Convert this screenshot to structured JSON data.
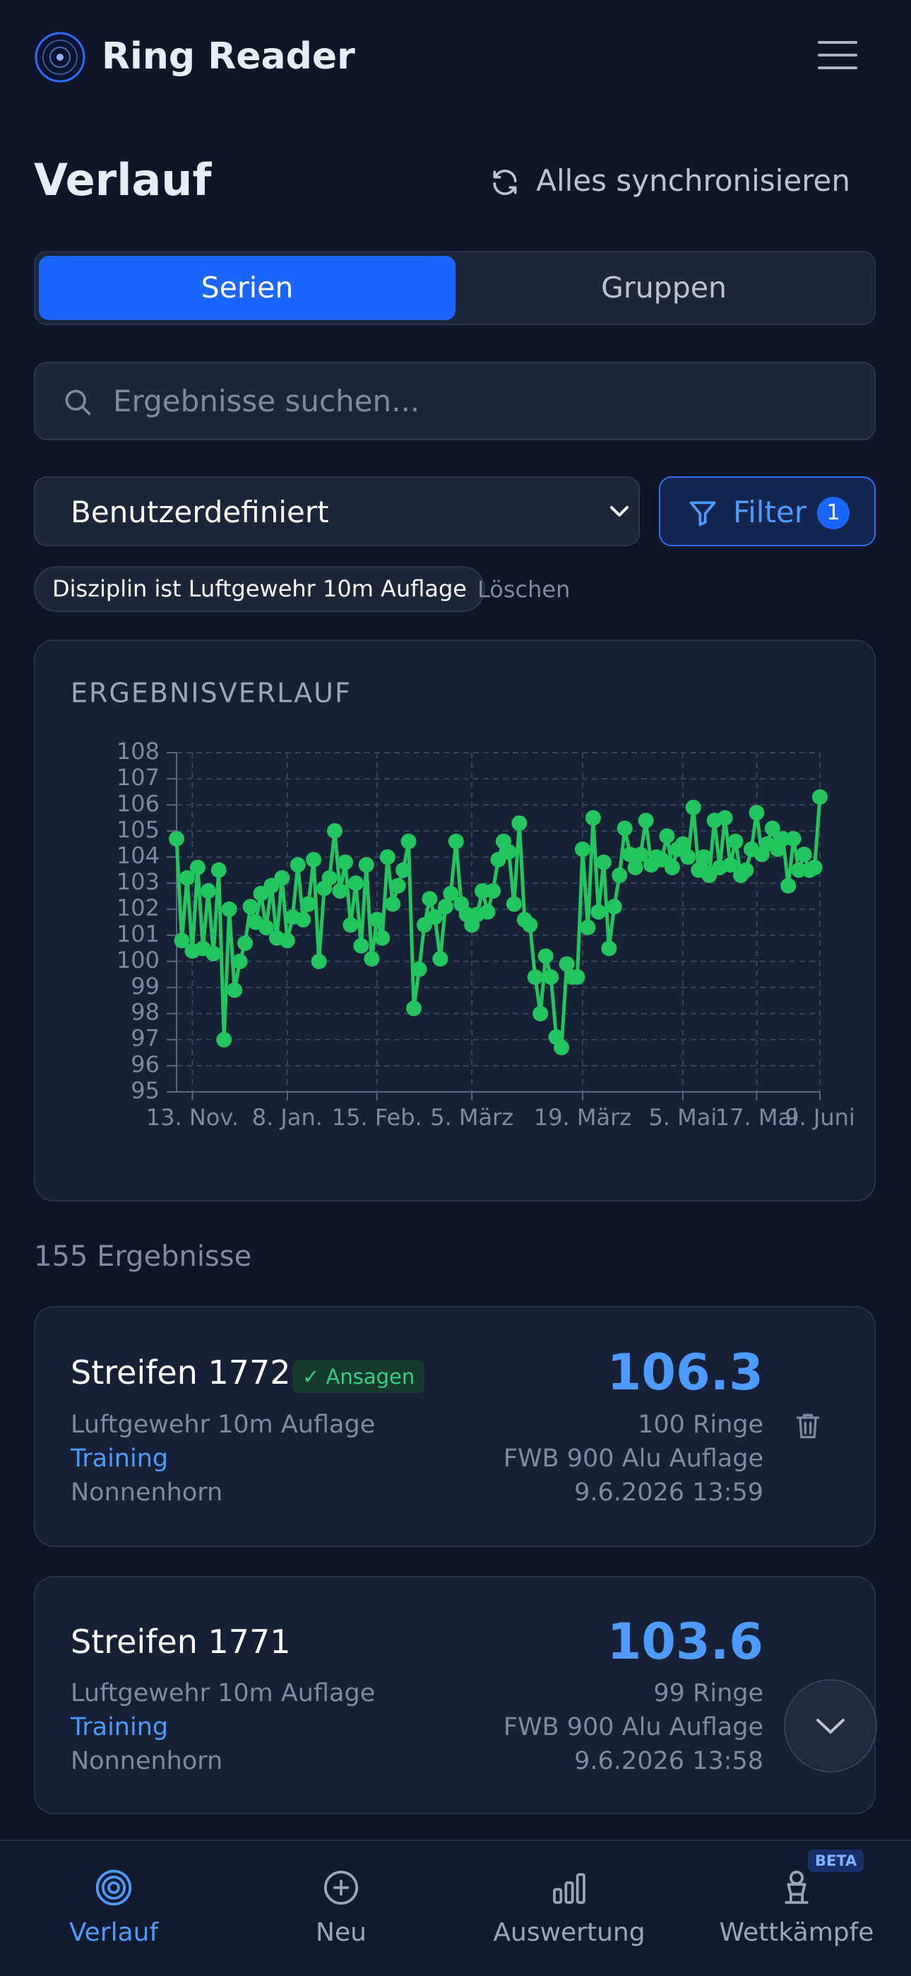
{
  "header": {
    "title": "Ring Reader"
  },
  "page": {
    "title": "Verlauf",
    "sync": "Alles synchronisieren"
  },
  "tabs": [
    "Serien",
    "Gruppen"
  ],
  "search": {
    "placeholder": "Ergebnisse suchen..."
  },
  "filters": {
    "range": "Benutzerdefiniert",
    "button": "Filter",
    "count": 1,
    "chip": "Disziplin ist Luftgewehr 10m Auflage",
    "clear": "Löschen"
  },
  "chart_data": {
    "type": "line",
    "title": "ERGEBNISVERLAUF",
    "color": "#22c55e",
    "grid": true,
    "values": [
      104.7,
      100.8,
      103.2,
      100.4,
      103.6,
      100.5,
      102.7,
      100.3,
      103.5,
      97.0,
      102.0,
      98.9,
      100.0,
      100.7,
      102.1,
      101.5,
      102.6,
      101.3,
      102.9,
      100.9,
      103.2,
      100.8,
      101.7,
      103.7,
      101.6,
      102.2,
      103.9,
      100.0,
      102.8,
      103.2,
      105.0,
      102.7,
      103.8,
      101.4,
      103.0,
      100.6,
      103.7,
      100.1,
      101.6,
      100.9,
      104.0,
      102.2,
      102.9,
      103.5,
      104.6,
      98.2,
      99.7,
      101.4,
      102.4,
      101.7,
      100.1,
      102.1,
      102.6,
      104.6,
      102.2,
      101.8,
      101.4,
      101.8,
      102.7,
      101.9,
      102.7,
      103.9,
      104.6,
      104.2,
      102.2,
      105.3,
      101.6,
      101.4,
      99.4,
      98.0,
      100.2,
      99.4,
      97.1,
      96.7,
      99.9,
      99.4,
      99.4,
      104.3,
      101.3,
      105.5,
      101.9,
      103.8,
      100.5,
      102.1,
      103.3,
      105.1,
      104.1,
      103.6,
      104.1,
      105.4,
      103.7,
      104.0,
      103.9,
      104.8,
      103.6,
      104.3,
      104.5,
      104.0,
      105.9,
      103.5,
      104.0,
      103.3,
      105.4,
      103.6,
      105.5,
      103.7,
      104.6,
      103.3,
      103.5,
      104.3,
      105.7,
      104.1,
      104.5,
      105.1,
      104.3,
      104.7,
      102.9,
      104.7,
      103.5,
      104.1,
      103.5,
      103.6,
      106.3
    ],
    "xlim": [
      0,
      122
    ],
    "xticks": [
      {
        "value": 3,
        "label": "13. Nov."
      },
      {
        "value": 21,
        "label": "8. Jan."
      },
      {
        "value": 38,
        "label": "15. Feb."
      },
      {
        "value": 56,
        "label": "5. März"
      },
      {
        "value": 77,
        "label": "19. März"
      },
      {
        "value": 96,
        "label": "5. Mai"
      },
      {
        "value": 110,
        "label": "17. Mai"
      },
      {
        "value": 122,
        "label": "9. Juni"
      }
    ],
    "ylim": [
      95,
      108
    ],
    "yticks": [
      95,
      96,
      97,
      98,
      99,
      100,
      101,
      102,
      103,
      104,
      105,
      106,
      107,
      108
    ]
  },
  "results_count": "155 Ergebnisse",
  "results": [
    {
      "title": "Streifen 1772",
      "badge": "✓ Ansagen",
      "score": 106.3,
      "rings": "100 Ringe",
      "discipline": "Luftgewehr 10m Auflage",
      "kind": "Training",
      "location": "Nonnenhorn",
      "rifle": "FWB 900 Alu Auflage",
      "date": "9.6.2026 13:59"
    },
    {
      "title": "Streifen 1771",
      "score": 103.6,
      "rings": "99 Ringe",
      "discipline": "Luftgewehr 10m Auflage",
      "kind": "Training",
      "location": "Nonnenhorn",
      "rifle": "FWB 900 Alu Auflage",
      "date": "9.6.2026 13:58"
    }
  ],
  "nav": {
    "items": [
      "Verlauf",
      "Neu",
      "Auswertung",
      "Wettkämpfe"
    ],
    "badge": "BETA"
  }
}
